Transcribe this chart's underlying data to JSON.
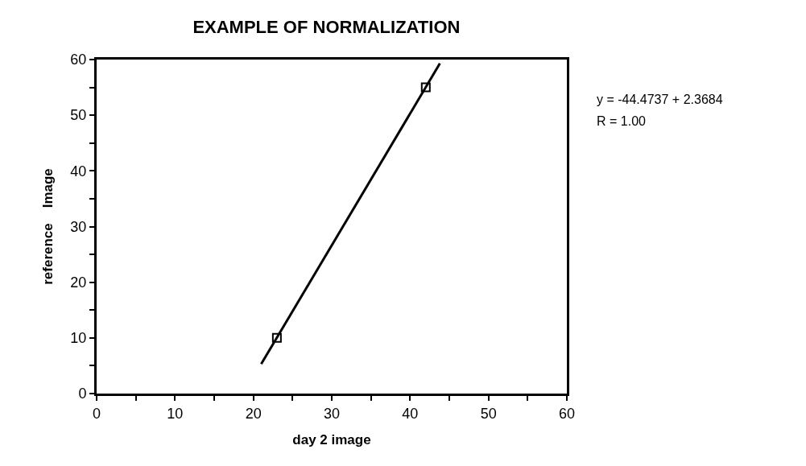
{
  "chart_data": {
    "type": "scatter",
    "title": "EXAMPLE OF NORMALIZATION",
    "xlabel": "day 2 image",
    "ylabel": "reference    Image",
    "annotations": [
      "y = -44.4737 + 2.3684",
      "R = 1.00"
    ],
    "series": [
      {
        "color": "#000000",
        "marker": "square",
        "x": [
          23,
          42
        ],
        "values": [
          10,
          55
        ]
      },
      {
        "type": "line",
        "color": "#000000",
        "marker": "none",
        "line_style": "solid",
        "x": [
          21,
          43.8
        ],
        "values": [
          5.3,
          59.3
        ]
      }
    ],
    "xlim": [
      0,
      60
    ],
    "ylim": [
      0,
      60
    ],
    "xticks": [
      0,
      {
        "value": 5,
        "label": null
      },
      10,
      {
        "value": 15,
        "label": null
      },
      20,
      {
        "value": 25,
        "label": null
      },
      30,
      {
        "value": 35,
        "label": null
      },
      40,
      {
        "value": 45,
        "label": null
      },
      50,
      {
        "value": 55,
        "label": null
      },
      60
    ],
    "yticks": [
      0,
      {
        "value": 5,
        "label": null
      },
      10,
      {
        "value": 15,
        "label": null
      },
      20,
      {
        "value": 25,
        "label": null
      },
      30,
      {
        "value": 35,
        "label": null
      },
      40,
      {
        "value": 45,
        "label": null
      },
      50,
      {
        "value": 55,
        "label": null
      },
      60
    ]
  }
}
